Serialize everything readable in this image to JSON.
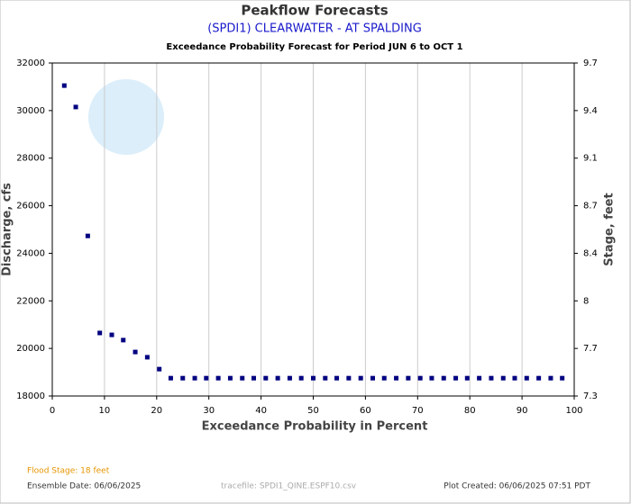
{
  "chart_data": {
    "type": "scatter",
    "title": "Peakflow Forecasts",
    "subtitle": "(SPDI1) CLEARWATER - AT SPALDING",
    "subtitle2": "Exceedance Probability Forecast for Period JUN 6 to OCT 1",
    "xlabel": "Exceedance Probability in Percent",
    "ylabel": "Discharge, cfs",
    "y2label": "Stage, feet",
    "color": "#000080",
    "x": [
      2.3,
      4.5,
      6.8,
      9.1,
      11.4,
      13.6,
      15.9,
      18.2,
      20.5,
      22.7,
      25.0,
      27.3,
      29.5,
      31.8,
      34.1,
      36.4,
      38.6,
      40.9,
      43.2,
      45.5,
      47.7,
      50.0,
      52.3,
      54.5,
      56.8,
      59.1,
      61.4,
      63.6,
      65.9,
      68.2,
      70.5,
      72.7,
      75.0,
      77.3,
      79.5,
      81.8,
      84.1,
      86.4,
      88.6,
      90.9,
      93.2,
      95.5,
      97.7
    ],
    "values": [
      31050,
      30150,
      24730,
      20650,
      20570,
      20350,
      19850,
      19630,
      19130,
      18750,
      18750,
      18750,
      18750,
      18750,
      18750,
      18750,
      18750,
      18750,
      18750,
      18750,
      18750,
      18750,
      18750,
      18750,
      18750,
      18750,
      18750,
      18750,
      18750,
      18750,
      18750,
      18750,
      18750,
      18750,
      18750,
      18750,
      18750,
      18750,
      18750,
      18750,
      18750,
      18750,
      18750
    ],
    "xlim": [
      0,
      100
    ],
    "xticks": [
      0,
      10,
      20,
      30,
      40,
      50,
      60,
      70,
      80,
      90,
      100
    ],
    "ylim": [
      18000,
      32000
    ],
    "yticks": [
      18000,
      20000,
      22000,
      24000,
      26000,
      28000,
      30000,
      32000
    ],
    "y2ticks": [
      7.3,
      7.7,
      8.0,
      8.4,
      8.7,
      9.1,
      9.4,
      9.7
    ],
    "grid": true,
    "footer": {
      "flood_stage": "Flood Stage: 18 feet",
      "ensemble_date": "Ensemble Date: 06/06/2025",
      "tracefile": "tracefile: SPDI1_QINE.ESPF10.csv",
      "plot_created": "Plot Created: 06/06/2025 07:51 PDT"
    }
  }
}
